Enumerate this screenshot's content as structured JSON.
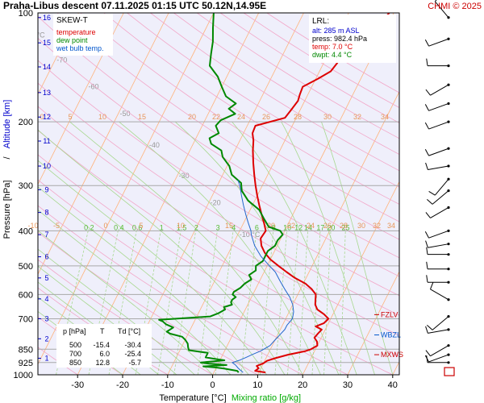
{
  "header": {
    "title": "Praha-Libus   descent   07.11.2025 01:15 UTC   50.12N,14.95E",
    "credit": "CHMI © 2025"
  },
  "legend": {
    "title": "SKEW-T",
    "items": [
      {
        "label": "temperature",
        "color": "#dd0000"
      },
      {
        "label": "dew point",
        "color": "#008800"
      },
      {
        "label": "wet bulb temp.",
        "color": "#0055cc"
      }
    ]
  },
  "lrl": {
    "title": "LRL:",
    "lines": [
      {
        "text": "alt: 285 m ASL",
        "color": "#0000cc"
      },
      {
        "text": "press: 982.4 hPa",
        "color": "#000000"
      },
      {
        "text": "temp: 7.0 °C",
        "color": "#dd0000"
      },
      {
        "text": "dwpt: 4.4 °C",
        "color": "#008800"
      }
    ]
  },
  "table": {
    "headers": [
      "p [hPa]",
      "T",
      "Td [°C]"
    ],
    "rows": [
      [
        "500",
        "-15.4",
        "-30.4"
      ],
      [
        "700",
        "6.0",
        "-25.4"
      ],
      [
        "850",
        "12.8",
        "-5.7"
      ]
    ]
  },
  "levels": [
    {
      "label": "FZLV",
      "pressure": 682,
      "color": "#cc0000"
    },
    {
      "label": "WBZL",
      "pressure": 776,
      "color": "#0055cc"
    },
    {
      "label": "MXWS",
      "pressure": 880,
      "color": "#cc0000"
    }
  ],
  "colors": {
    "temperature": "#dd0000",
    "dewpoint": "#008800",
    "wetbulb": "#2266cc",
    "isotherm": "#ffb27a",
    "dry_adiabat": "#f2a6c8",
    "moist_adiabat": "#a8d890",
    "mixing_ratio": "#a8d890",
    "isobar": "#a9a9a9",
    "plot_bg": "#efeffb"
  },
  "chart_data": {
    "type": "line",
    "xlabel": "Temperature [°C]",
    "xlabel2": "Mixing ratio [g/kg]",
    "ylabel": "Pressure [hPa]",
    "ylabel2": "Altitude [km]",
    "xlim": [
      -36,
      42
    ],
    "ylim": [
      1000,
      100
    ],
    "x_ticks": [
      -30,
      -20,
      -10,
      0,
      10,
      20,
      30,
      40
    ],
    "pressure_ticks": [
      100,
      200,
      300,
      400,
      500,
      600,
      700,
      850,
      925,
      1000
    ],
    "altitude_ticks": [
      {
        "km": 1,
        "p": 900
      },
      {
        "km": 2,
        "p": 795
      },
      {
        "km": 3,
        "p": 700
      },
      {
        "km": 4,
        "p": 617
      },
      {
        "km": 5,
        "p": 540
      },
      {
        "km": 6,
        "p": 472
      },
      {
        "km": 7,
        "p": 410
      },
      {
        "km": 8,
        "p": 356
      },
      {
        "km": 9,
        "p": 308
      },
      {
        "km": 10,
        "p": 265
      },
      {
        "km": 11,
        "p": 226
      },
      {
        "km": 12,
        "p": 194
      },
      {
        "km": 13,
        "p": 166
      },
      {
        "km": 14,
        "p": 141
      },
      {
        "km": 15,
        "p": 121
      },
      {
        "km": 16,
        "p": 103
      }
    ],
    "isotherm_labels": [
      "-80 °C",
      "-70",
      "-60",
      "-50",
      "-40",
      "-30",
      "-20",
      "-10 °C"
    ],
    "mixing_ratio_labels": [
      "0.2",
      "0.4",
      "0.6",
      "1",
      "1.5",
      "2",
      "3",
      "4",
      "6",
      "8",
      "10",
      "12",
      "14",
      "17",
      "20",
      "25"
    ],
    "upper_numbers_row1": [
      "0",
      "5",
      "10",
      "15",
      "20",
      "22",
      "24",
      "26",
      "28",
      "30",
      "32",
      "34"
    ],
    "upper_numbers_row2": [
      "-10",
      "-5",
      "0",
      "5",
      "10",
      "15",
      "20",
      "22",
      "24",
      "26",
      "28",
      "30",
      "32",
      "34"
    ],
    "series": [
      {
        "name": "temperature",
        "points": [
          [
            985,
            11.5
          ],
          [
            975,
            9.0
          ],
          [
            960,
            9.5
          ],
          [
            945,
            8.8
          ],
          [
            930,
            10.0
          ],
          [
            915,
            10.5
          ],
          [
            900,
            12.0
          ],
          [
            880,
            14.5
          ],
          [
            860,
            18.0
          ],
          [
            850,
            19.0
          ],
          [
            830,
            20.0
          ],
          [
            810,
            19.5
          ],
          [
            790,
            18.5
          ],
          [
            770,
            18.8
          ],
          [
            750,
            19.2
          ],
          [
            735,
            17.5
          ],
          [
            720,
            19.0
          ],
          [
            700,
            19.5
          ],
          [
            680,
            18.0
          ],
          [
            660,
            16.0
          ],
          [
            640,
            15.0
          ],
          [
            620,
            14.5
          ],
          [
            600,
            14.0
          ],
          [
            580,
            12.5
          ],
          [
            560,
            10.5
          ],
          [
            540,
            7.5
          ],
          [
            520,
            5.0
          ],
          [
            500,
            2.5
          ],
          [
            480,
            0.0
          ],
          [
            460,
            -2.0
          ],
          [
            440,
            -3.5
          ],
          [
            420,
            -4.5
          ],
          [
            400,
            -4.2
          ],
          [
            380,
            -5.5
          ],
          [
            360,
            -7.0
          ],
          [
            340,
            -8.5
          ],
          [
            320,
            -10.0
          ],
          [
            300,
            -11.5
          ],
          [
            280,
            -13.0
          ],
          [
            260,
            -14.5
          ],
          [
            240,
            -16.0
          ],
          [
            225,
            -17.0
          ],
          [
            215,
            -18.0
          ],
          [
            205,
            -18.2
          ],
          [
            195,
            -12.5
          ],
          [
            185,
            -12.0
          ],
          [
            175,
            -11.5
          ],
          [
            168,
            -11.8
          ],
          [
            160,
            -12.0
          ],
          [
            152,
            -9.5
          ],
          [
            145,
            -7.5
          ],
          [
            138,
            -7.0
          ],
          [
            130,
            -6.8
          ],
          [
            125,
            -4.5
          ],
          [
            118,
            -2.8
          ],
          [
            110,
            -2.5
          ],
          [
            104,
            -1.5
          ],
          [
            100,
            -1.0
          ]
        ]
      },
      {
        "name": "dewpoint",
        "points": [
          [
            985,
            5.5
          ],
          [
            975,
            5.0
          ],
          [
            962,
            2.0
          ],
          [
            955,
            0.0
          ],
          [
            948,
            -3.0
          ],
          [
            940,
            2.0
          ],
          [
            932,
            -2.0
          ],
          [
            925,
            -4.0
          ],
          [
            917,
            -1.0
          ],
          [
            912,
            1.0
          ],
          [
            905,
            -1.0
          ],
          [
            895,
            -3.5
          ],
          [
            885,
            -3.5
          ],
          [
            870,
            -3.5
          ],
          [
            855,
            -8.0
          ],
          [
            840,
            -8.5
          ],
          [
            820,
            -9.0
          ],
          [
            800,
            -10.0
          ],
          [
            785,
            -11.0
          ],
          [
            770,
            -14.0
          ],
          [
            760,
            -15.0
          ],
          [
            740,
            -14.0
          ],
          [
            725,
            -16.0
          ],
          [
            712,
            -17.0
          ],
          [
            705,
            -18.0
          ],
          [
            690,
            -7.0
          ],
          [
            675,
            -5.5
          ],
          [
            660,
            -4.5
          ],
          [
            650,
            -5.0
          ],
          [
            640,
            -3.5
          ],
          [
            630,
            -4.0
          ],
          [
            620,
            -4.0
          ],
          [
            610,
            -3.5
          ],
          [
            600,
            -4.5
          ],
          [
            590,
            -4.5
          ],
          [
            575,
            -3.5
          ],
          [
            560,
            -3.0
          ],
          [
            545,
            -2.0
          ],
          [
            530,
            -3.0
          ],
          [
            515,
            -2.0
          ],
          [
            500,
            -2.5
          ],
          [
            485,
            -1.5
          ],
          [
            470,
            -1.5
          ],
          [
            455,
            -1.5
          ],
          [
            440,
            -0.5
          ],
          [
            425,
            -0.5
          ],
          [
            410,
            0.0
          ],
          [
            400,
            -1.0
          ],
          [
            390,
            -4.0
          ],
          [
            370,
            -6.0
          ],
          [
            350,
            -8.0
          ],
          [
            330,
            -11.5
          ],
          [
            310,
            -14.0
          ],
          [
            295,
            -15.0
          ],
          [
            280,
            -18.0
          ],
          [
            265,
            -19.5
          ],
          [
            250,
            -22.0
          ],
          [
            240,
            -23.0
          ],
          [
            230,
            -26.0
          ],
          [
            222,
            -27.0
          ],
          [
            215,
            -25.5
          ],
          [
            205,
            -27.0
          ],
          [
            198,
            -26.5
          ],
          [
            190,
            -24.0
          ],
          [
            184,
            -26.0
          ],
          [
            178,
            -25.0
          ],
          [
            170,
            -28.0
          ],
          [
            160,
            -30.0
          ],
          [
            150,
            -32.0
          ],
          [
            140,
            -35.0
          ],
          [
            130,
            -36.0
          ],
          [
            120,
            -37.0
          ],
          [
            110,
            -38.5
          ],
          [
            100,
            -40.0
          ]
        ]
      },
      {
        "name": "wet bulb temp.",
        "points": [
          [
            985,
            6.5
          ],
          [
            960,
            5.0
          ],
          [
            940,
            4.0
          ],
          [
            925,
            3.0
          ],
          [
            910,
            4.5
          ],
          [
            895,
            5.5
          ],
          [
            880,
            6.5
          ],
          [
            860,
            8.0
          ],
          [
            850,
            8.5
          ],
          [
            830,
            9.5
          ],
          [
            800,
            10.0
          ],
          [
            775,
            10.5
          ],
          [
            750,
            11.0
          ],
          [
            730,
            11.0
          ],
          [
            700,
            11.5
          ],
          [
            670,
            11.0
          ],
          [
            640,
            10.0
          ],
          [
            610,
            8.5
          ],
          [
            580,
            6.5
          ],
          [
            550,
            4.5
          ],
          [
            520,
            2.5
          ],
          [
            500,
            0.5
          ],
          [
            470,
            -2.5
          ],
          [
            440,
            -5.0
          ],
          [
            410,
            -7.0
          ],
          [
            400,
            -7.5
          ],
          [
            380,
            -9.0
          ],
          [
            360,
            -10.5
          ],
          [
            340,
            -12.0
          ],
          [
            320,
            -13.5
          ],
          [
            300,
            -15.0
          ],
          [
            290,
            -16.0
          ]
        ]
      }
    ],
    "wind_barbs": [
      {
        "p": 103,
        "dir": 320,
        "kt": 10
      },
      {
        "p": 118,
        "dir": 250,
        "kt": 10
      },
      {
        "p": 140,
        "dir": 270,
        "kt": 10
      },
      {
        "p": 158,
        "dir": 240,
        "kt": 10
      },
      {
        "p": 178,
        "dir": 250,
        "kt": 10
      },
      {
        "p": 200,
        "dir": 250,
        "kt": 10
      },
      {
        "p": 237,
        "dir": 250,
        "kt": 10
      },
      {
        "p": 265,
        "dir": 260,
        "kt": 10
      },
      {
        "p": 288,
        "dir": 220,
        "kt": 10
      },
      {
        "p": 310,
        "dir": 230,
        "kt": 10
      },
      {
        "p": 345,
        "dir": 240,
        "kt": 10
      },
      {
        "p": 400,
        "dir": 250,
        "kt": 10
      },
      {
        "p": 435,
        "dir": 260,
        "kt": 10
      },
      {
        "p": 465,
        "dir": 270,
        "kt": 10
      },
      {
        "p": 510,
        "dir": 270,
        "kt": 10
      },
      {
        "p": 555,
        "dir": 270,
        "kt": 10
      },
      {
        "p": 620,
        "dir": 300,
        "kt": 10
      },
      {
        "p": 690,
        "dir": 230,
        "kt": 10
      },
      {
        "p": 750,
        "dir": 260,
        "kt": 10
      },
      {
        "p": 830,
        "dir": 240,
        "kt": 10
      },
      {
        "p": 880,
        "dir": 250,
        "kt": 10
      },
      {
        "p": 925,
        "dir": 270,
        "kt": 10
      }
    ]
  }
}
